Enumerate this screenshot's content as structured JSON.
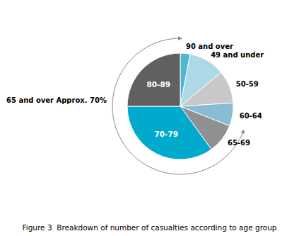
{
  "chart_data": {
    "type": "pie",
    "title": "Figure 3  Breakdown of number of casualties according to age group",
    "categories": [
      "90 and over",
      "49 and under",
      "50-59",
      "60-64",
      "65-69",
      "70-79",
      "80-89"
    ],
    "values": [
      3,
      11,
      10,
      7,
      9,
      35,
      25
    ],
    "colors": [
      "#4db8d4",
      "#add8e6",
      "#c8c8c8",
      "#87bcd4",
      "#909090",
      "#00aacc",
      "#606060"
    ],
    "annotation": "65 and over Approx. 70%"
  }
}
